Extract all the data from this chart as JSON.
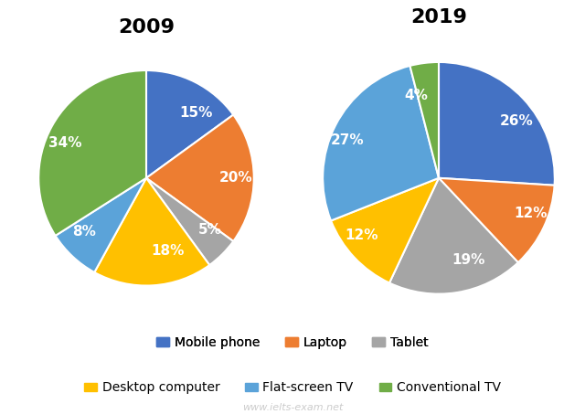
{
  "title_2009": "2009",
  "title_2019": "2019",
  "categories": [
    "Mobile phone",
    "Laptop",
    "Tablet",
    "Desktop computer",
    "Flat-screen TV",
    "Conventional TV"
  ],
  "colors": [
    "#4472C4",
    "#ED7D31",
    "#A5A5A5",
    "#FFC000",
    "#5BA3D9",
    "#70AD47"
  ],
  "values_2009": [
    15,
    20,
    5,
    18,
    8,
    34
  ],
  "values_2019": [
    26,
    12,
    19,
    12,
    27,
    4
  ],
  "labels_2009": [
    "15%",
    "20%",
    "5%",
    "18%",
    "8%",
    "34%"
  ],
  "labels_2019": [
    "26%",
    "12%",
    "19%",
    "12%",
    "27%",
    "4%"
  ],
  "startangle_2009": 90,
  "startangle_2019": 90,
  "watermark": "www.ielts-exam.net",
  "title_fontsize": 16,
  "label_fontsize": 11,
  "legend_fontsize": 10
}
